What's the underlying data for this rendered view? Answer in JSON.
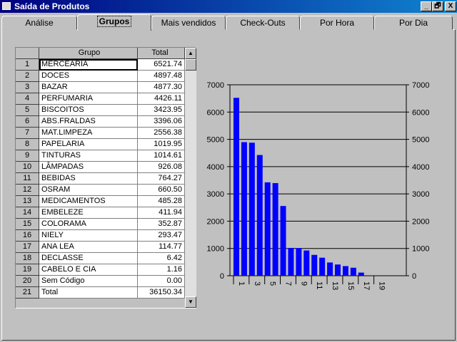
{
  "window": {
    "title": "Saída de Produtos",
    "minimize": "_",
    "restore": "🗗",
    "close": "X"
  },
  "tabs": [
    {
      "label": "Análise"
    },
    {
      "label": "Grupos",
      "active": true
    },
    {
      "label": "Mais vendidos"
    },
    {
      "label": "Check-Outs"
    },
    {
      "label": "Por Hora"
    },
    {
      "label": "Por Dia"
    }
  ],
  "table": {
    "headers": [
      "",
      "Grupo",
      "Total"
    ],
    "rows": [
      [
        "1",
        "MERCEARIA",
        "6521.74"
      ],
      [
        "2",
        "DOCES",
        "4897.48"
      ],
      [
        "3",
        "BAZAR",
        "4877.30"
      ],
      [
        "4",
        "PERFUMARIA",
        "4426.11"
      ],
      [
        "5",
        "BISCOITOS",
        "3423.95"
      ],
      [
        "6",
        "ABS.FRALDAS",
        "3396.06"
      ],
      [
        "7",
        "MAT.LIMPEZA",
        "2556.38"
      ],
      [
        "8",
        "PAPELARIA",
        "1019.95"
      ],
      [
        "9",
        "TINTURAS",
        "1014.61"
      ],
      [
        "10",
        "LÂMPADAS",
        "926.08"
      ],
      [
        "11",
        "BEBIDAS",
        "764.27"
      ],
      [
        "12",
        "OSRAM",
        "660.50"
      ],
      [
        "13",
        "MEDICAMENTOS",
        "485.28"
      ],
      [
        "14",
        "EMBELEZE",
        "411.94"
      ],
      [
        "15",
        "COLORAMA",
        "352.87"
      ],
      [
        "16",
        "NIELY",
        "293.47"
      ],
      [
        "17",
        "ANA LEA",
        "114.77"
      ],
      [
        "18",
        "DECLASSE",
        "6.42"
      ],
      [
        "19",
        "CABELO E CIA",
        "1.16"
      ],
      [
        "20",
        "Sem Código",
        "0.00"
      ],
      [
        "21",
        "Total",
        "36150.34"
      ]
    ]
  },
  "chart_data": {
    "type": "bar",
    "categories": [
      "1",
      "2",
      "3",
      "4",
      "5",
      "6",
      "7",
      "8",
      "9",
      "10",
      "11",
      "12",
      "13",
      "14",
      "15",
      "16",
      "17",
      "18",
      "19",
      "20"
    ],
    "x_tick_labels": [
      "1",
      "3",
      "5",
      "7",
      "9",
      "11",
      "13",
      "15",
      "17",
      "19"
    ],
    "values": [
      6521.74,
      4897.48,
      4877.3,
      4426.11,
      3423.95,
      3396.06,
      2556.38,
      1019.95,
      1014.61,
      926.08,
      764.27,
      660.5,
      485.28,
      411.94,
      352.87,
      293.47,
      114.77,
      6.42,
      1.16,
      0.0
    ],
    "ylim": [
      0,
      7000
    ],
    "yticks": [
      "0",
      "1000",
      "2000",
      "3000",
      "4000",
      "5000",
      "6000",
      "7000"
    ],
    "grid": true,
    "bar_color": "#0000ff",
    "legend": "none"
  }
}
